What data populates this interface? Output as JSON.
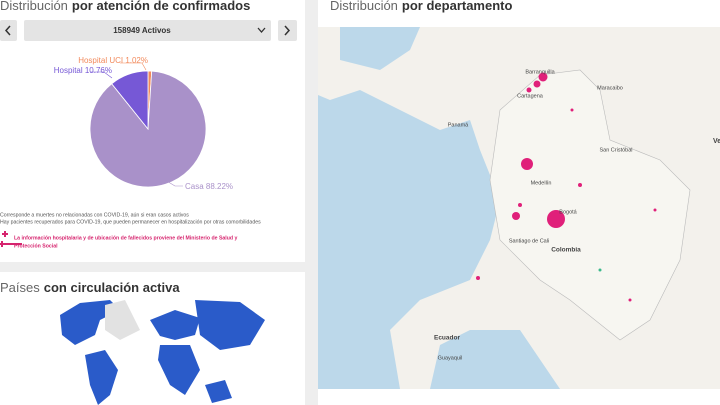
{
  "confirmed_panel": {
    "title_light": "Distribución",
    "title_bold": "por atención de confirmados",
    "selector": "158949 Activos"
  },
  "pie": {
    "type": "pie",
    "categories": [
      "Casa",
      "Hospital",
      "Hospital UCI"
    ],
    "values": [
      88.22,
      10.76,
      1.02
    ],
    "value_labels": [
      "Casa 88.22%",
      "Hospital 10.76%",
      "Hospital UCI 1.02%"
    ],
    "colors": [
      "#a991c9",
      "#7658d6",
      "#f28a5c"
    ]
  },
  "notes": [
    "Corresponde a muertes no relacionadas con COVID-19, aún si eran casos activos",
    "Hay pacientes recuperados para COVID-19, que pueden permanecer en hospitalización por otras comorbilidades"
  ],
  "info": [
    "La información hospitalaria y de ubicación de fallecidos proviene del Ministerio de Salud y",
    "Protección Social"
  ],
  "countries_panel": {
    "title_light": "Países",
    "title_bold": "con circulación activa"
  },
  "department_panel": {
    "title_light": "Distribución",
    "title_bold": "por departamento",
    "map_labels": [
      "Barranquilla",
      "Cartagena",
      "Maracaibo",
      "Panamá",
      "Medellín",
      "San Cristóbal",
      "Bogotá",
      "Santiago de Cali",
      "Colombia",
      "Ecuador",
      "Guayaquil",
      "Ven"
    ]
  }
}
